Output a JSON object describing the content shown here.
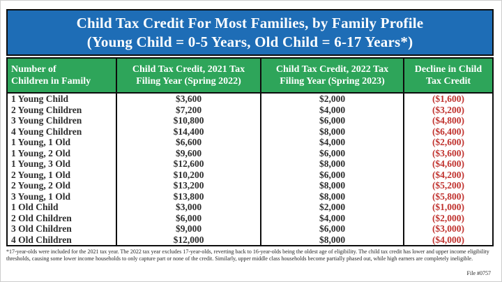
{
  "title": {
    "lines": [
      "Child Tax Credit For Most Families, by Family Profile",
      "(Young Child = 0-5 Years, Old Child = 6-17 Years*)"
    ]
  },
  "table": {
    "headers": [
      {
        "lines": [
          "Number of",
          "Children in Family"
        ]
      },
      {
        "lines": [
          "Child Tax Credit, 2021 Tax",
          "Filing Year (Spring 2022)"
        ]
      },
      {
        "lines": [
          "Child Tax Credit, 2022 Tax",
          "Filing Year (Spring 2023)"
        ]
      },
      {
        "lines": [
          "Decline in Child",
          "Tax Credit"
        ]
      }
    ],
    "rows": [
      {
        "family": "1 Young Child",
        "credit_2021": "$3,600",
        "credit_2022": "$2,000",
        "decline": "($1,600)"
      },
      {
        "family": "2 Young Children",
        "credit_2021": "$7,200",
        "credit_2022": "$4,000",
        "decline": "($3,200)"
      },
      {
        "family": "3 Young Children",
        "credit_2021": "$10,800",
        "credit_2022": "$6,000",
        "decline": "($4,800)"
      },
      {
        "family": "4 Young Children",
        "credit_2021": "$14,400",
        "credit_2022": "$8,000",
        "decline": "($6,400)"
      },
      {
        "family": "1 Young, 1 Old",
        "credit_2021": "$6,600",
        "credit_2022": "$4,000",
        "decline": "($2,600)"
      },
      {
        "family": "1 Young, 2 Old",
        "credit_2021": "$9,600",
        "credit_2022": "$6,000",
        "decline": "($3,600)"
      },
      {
        "family": "1 Young, 3 Old",
        "credit_2021": "$12,600",
        "credit_2022": "$8,000",
        "decline": "($4,600)"
      },
      {
        "family": "2 Young, 1 Old",
        "credit_2021": "$10,200",
        "credit_2022": "$6,000",
        "decline": "($4,200)"
      },
      {
        "family": "2 Young, 2 Old",
        "credit_2021": "$13,200",
        "credit_2022": "$8,000",
        "decline": "($5,200)"
      },
      {
        "family": "3 Young, 1 Old",
        "credit_2021": "$13,800",
        "credit_2022": "$8,000",
        "decline": "($5,800)"
      },
      {
        "family": "1 Old Child",
        "credit_2021": "$3,000",
        "credit_2022": "$2,000",
        "decline": "($1,000)"
      },
      {
        "family": "2 Old Children",
        "credit_2021": "$6,000",
        "credit_2022": "$4,000",
        "decline": "($2,000)"
      },
      {
        "family": "3 Old Children",
        "credit_2021": "$9,000",
        "credit_2022": "$6,000",
        "decline": "($3,000)"
      },
      {
        "family": "4 Old Children",
        "credit_2021": "$12,000",
        "credit_2022": "$8,000",
        "decline": "($4,000)"
      }
    ]
  },
  "footnote": "*17-year-olds were included for the 2021 tax year. The 2022 tax year excludes 17-year-olds, reverting back to 16-year-olds being the oldest age of eligibility. The child tax credit has lower and upper income eligibility thresholds, causing some lower income households to only capture part or none of the credit. Similarly, upper middle class households become partially phased out, while high earners are completely ineligible.",
  "file_label": "File #0757",
  "colors": {
    "title_bg": "#1e6db6",
    "header_bg": "#2ea55a",
    "border": "#0d0d0d",
    "body_text": "#2d2d2d",
    "header_text": "#ffffff",
    "decline_text": "#c0322e"
  },
  "chart_data": {
    "type": "table",
    "title": "Child Tax Credit For Most Families, by Family Profile (Young Child = 0-5 Years, Old Child = 6-17 Years*)",
    "columns": [
      "Number of Children in Family",
      "Child Tax Credit, 2021 Tax Filing Year (Spring 2022)",
      "Child Tax Credit, 2022 Tax Filing Year (Spring 2023)",
      "Decline in Child Tax Credit"
    ],
    "rows": [
      [
        "1 Young Child",
        3600,
        2000,
        -1600
      ],
      [
        "2 Young Children",
        7200,
        4000,
        -3200
      ],
      [
        "3 Young Children",
        10800,
        6000,
        -4800
      ],
      [
        "4 Young Children",
        14400,
        8000,
        -6400
      ],
      [
        "1 Young, 1 Old",
        6600,
        4000,
        -2600
      ],
      [
        "1 Young, 2 Old",
        9600,
        6000,
        -3600
      ],
      [
        "1 Young, 3 Old",
        12600,
        8000,
        -4600
      ],
      [
        "2 Young, 1 Old",
        10200,
        6000,
        -4200
      ],
      [
        "2 Young, 2 Old",
        13200,
        8000,
        -5200
      ],
      [
        "3 Young, 1 Old",
        13800,
        8000,
        -5800
      ],
      [
        "1 Old Child",
        3000,
        2000,
        -1000
      ],
      [
        "2 Old Children",
        6000,
        4000,
        -2000
      ],
      [
        "3 Old Children",
        9000,
        6000,
        -3000
      ],
      [
        "4 Old Children",
        12000,
        8000,
        -4000
      ]
    ]
  }
}
